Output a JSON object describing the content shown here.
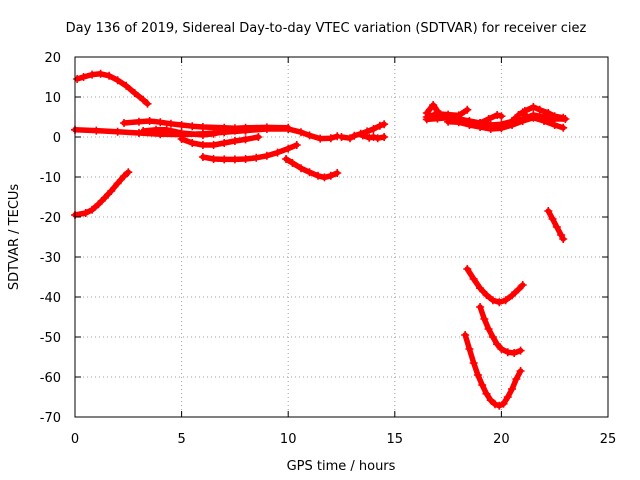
{
  "chart_data": {
    "type": "scatter",
    "title": "Day 136 of 2019, Sidereal Day-to-day VTEC variation (SDTVAR) for receiver ciez",
    "xlabel": "GPS time / hours",
    "ylabel": "SDTVAR / TECUs",
    "xlim": [
      0,
      25
    ],
    "ylim": [
      -70,
      20
    ],
    "xticks": [
      0,
      5,
      10,
      15,
      20,
      25
    ],
    "yticks": [
      20,
      10,
      0,
      -10,
      -20,
      -30,
      -40,
      -50,
      -60,
      -70
    ],
    "grid": true,
    "legend": "none",
    "color": "#ff0000",
    "marker": "plus",
    "series": [
      {
        "values": [
          [
            0.1,
            14.5
          ],
          [
            0.4,
            15.0
          ],
          [
            0.8,
            15.6
          ],
          [
            1.2,
            15.8
          ],
          [
            1.6,
            15.3
          ],
          [
            2.0,
            14.2
          ],
          [
            2.4,
            12.8
          ],
          [
            2.8,
            11.0
          ],
          [
            3.2,
            9.3
          ],
          [
            3.4,
            8.3
          ]
        ]
      },
      {
        "values": [
          [
            0.0,
            1.8
          ],
          [
            1.0,
            1.6
          ],
          [
            2.0,
            1.3
          ],
          [
            3.0,
            1.0
          ],
          [
            4.0,
            0.7
          ],
          [
            5.0,
            0.6
          ],
          [
            6.0,
            0.8
          ],
          [
            7.0,
            1.2
          ],
          [
            8.0,
            1.6
          ],
          [
            9.0,
            2.0
          ],
          [
            10.0,
            2.0
          ],
          [
            10.6,
            1.2
          ],
          [
            11.0,
            0.4
          ],
          [
            11.5,
            -0.4
          ],
          [
            12.0,
            -0.3
          ],
          [
            12.3,
            0.2
          ]
        ]
      },
      {
        "values": [
          [
            2.3,
            3.5
          ],
          [
            3.0,
            3.8
          ],
          [
            3.5,
            4.0
          ],
          [
            4.0,
            3.7
          ],
          [
            4.5,
            3.3
          ],
          [
            5.0,
            3.0
          ],
          [
            5.5,
            2.7
          ],
          [
            6.0,
            2.5
          ],
          [
            7.0,
            2.3
          ],
          [
            7.5,
            2.2
          ],
          [
            8.0,
            2.3
          ],
          [
            9.0,
            2.4
          ],
          [
            10.0,
            2.3
          ]
        ]
      },
      {
        "values": [
          [
            3.2,
            1.5
          ],
          [
            3.8,
            1.8
          ],
          [
            4.3,
            1.8
          ],
          [
            5.0,
            1.0
          ],
          [
            6.0,
            0.5
          ],
          [
            6.5,
            0.8
          ],
          [
            7.0,
            1.4
          ],
          [
            7.5,
            1.6
          ],
          [
            8.0,
            1.6
          ]
        ]
      },
      {
        "values": [
          [
            5.0,
            -0.5
          ],
          [
            5.5,
            -1.5
          ],
          [
            6.0,
            -2.0
          ],
          [
            6.5,
            -2.0
          ],
          [
            7.0,
            -1.5
          ],
          [
            7.5,
            -1.0
          ],
          [
            8.0,
            -0.6
          ],
          [
            8.6,
            0.0
          ]
        ]
      },
      {
        "values": [
          [
            6.0,
            -5.0
          ],
          [
            6.5,
            -5.5
          ],
          [
            7.0,
            -5.6
          ],
          [
            7.5,
            -5.6
          ],
          [
            8.0,
            -5.5
          ],
          [
            8.5,
            -5.2
          ],
          [
            9.0,
            -4.7
          ],
          [
            9.5,
            -3.9
          ],
          [
            10.0,
            -2.9
          ],
          [
            10.4,
            -2.0
          ]
        ]
      },
      {
        "values": [
          [
            9.9,
            -5.5
          ],
          [
            10.2,
            -6.5
          ],
          [
            10.6,
            -7.8
          ],
          [
            11.0,
            -8.8
          ],
          [
            11.4,
            -9.7
          ],
          [
            11.7,
            -10.1
          ],
          [
            12.0,
            -9.7
          ],
          [
            12.3,
            -9.0
          ]
        ]
      },
      {
        "values": [
          [
            12.5,
            0.0
          ],
          [
            12.9,
            -0.3
          ],
          [
            13.1,
            0.3
          ],
          [
            13.4,
            0.8
          ],
          [
            13.7,
            1.4
          ],
          [
            14.0,
            2.0
          ],
          [
            14.3,
            2.8
          ],
          [
            14.5,
            3.2
          ]
        ]
      },
      {
        "values": [
          [
            13.5,
            0.4
          ],
          [
            13.8,
            -0.2
          ],
          [
            14.0,
            0.0
          ],
          [
            14.2,
            -0.3
          ],
          [
            14.5,
            0.0
          ]
        ]
      },
      {
        "values": [
          [
            0.0,
            -19.5
          ],
          [
            0.5,
            -19.0
          ],
          [
            0.8,
            -18.2
          ],
          [
            1.1,
            -16.8
          ],
          [
            1.4,
            -15.2
          ],
          [
            1.7,
            -13.5
          ],
          [
            2.0,
            -11.6
          ],
          [
            2.3,
            -9.8
          ],
          [
            2.5,
            -8.8
          ]
        ]
      },
      {
        "values": [
          [
            16.5,
            6.0
          ],
          [
            16.8,
            8.0
          ],
          [
            17.0,
            6.5
          ]
        ]
      },
      {
        "values": [
          [
            16.5,
            5.0
          ],
          [
            17.0,
            5.8
          ],
          [
            17.5,
            5.6
          ],
          [
            18.0,
            5.4
          ],
          [
            18.4,
            6.8
          ]
        ]
      },
      {
        "values": [
          [
            16.5,
            4.4
          ],
          [
            17.0,
            4.6
          ],
          [
            17.5,
            4.8
          ],
          [
            18.0,
            4.5
          ],
          [
            18.5,
            4.0
          ],
          [
            19.0,
            3.5
          ],
          [
            19.5,
            3.0
          ],
          [
            20.0,
            3.2
          ],
          [
            20.5,
            3.9
          ],
          [
            21.0,
            4.5
          ],
          [
            21.5,
            5.5
          ],
          [
            22.0,
            5.0
          ],
          [
            22.5,
            4.5
          ],
          [
            23.0,
            4.5
          ]
        ]
      },
      {
        "values": [
          [
            17.5,
            3.8
          ],
          [
            18.0,
            3.7
          ],
          [
            18.5,
            3.0
          ],
          [
            19.0,
            2.5
          ],
          [
            19.5,
            2.0
          ],
          [
            20.0,
            2.2
          ],
          [
            20.5,
            3.0
          ],
          [
            21.0,
            4.0
          ],
          [
            21.5,
            4.8
          ],
          [
            22.0,
            4.0
          ],
          [
            22.5,
            3.0
          ],
          [
            22.9,
            2.3
          ]
        ]
      },
      {
        "values": [
          [
            19.0,
            3.5
          ],
          [
            19.4,
            4.5
          ],
          [
            19.8,
            5.5
          ],
          [
            20.0,
            5.2
          ]
        ]
      },
      {
        "values": [
          [
            20.5,
            4.0
          ],
          [
            20.8,
            5.5
          ],
          [
            21.0,
            6.2
          ],
          [
            21.2,
            5.0
          ]
        ]
      },
      {
        "values": [
          [
            21.1,
            6.5
          ],
          [
            21.5,
            7.5
          ],
          [
            21.8,
            6.8
          ],
          [
            22.2,
            6.0
          ],
          [
            22.5,
            5.2
          ],
          [
            22.9,
            4.8
          ]
        ]
      },
      {
        "values": [
          [
            22.2,
            -18.5
          ],
          [
            22.4,
            -20.5
          ],
          [
            22.6,
            -22.5
          ],
          [
            22.8,
            -24.5
          ],
          [
            22.9,
            -25.5
          ]
        ]
      },
      {
        "values": [
          [
            18.4,
            -33.0
          ],
          [
            18.7,
            -35.5
          ],
          [
            19.0,
            -37.8
          ],
          [
            19.3,
            -39.5
          ],
          [
            19.6,
            -40.8
          ],
          [
            19.9,
            -41.3
          ],
          [
            20.2,
            -40.8
          ],
          [
            20.5,
            -39.6
          ],
          [
            20.8,
            -38.1
          ],
          [
            21.0,
            -37.0
          ]
        ]
      },
      {
        "values": [
          [
            19.0,
            -42.5
          ],
          [
            19.2,
            -45.5
          ],
          [
            19.4,
            -48.0
          ],
          [
            19.6,
            -50.0
          ],
          [
            19.8,
            -51.8
          ],
          [
            20.0,
            -53.0
          ],
          [
            20.3,
            -53.8
          ],
          [
            20.6,
            -54.0
          ],
          [
            20.9,
            -53.4
          ]
        ]
      },
      {
        "values": [
          [
            18.3,
            -49.5
          ],
          [
            18.5,
            -53.0
          ],
          [
            18.7,
            -56.5
          ],
          [
            18.9,
            -59.5
          ],
          [
            19.1,
            -62.0
          ],
          [
            19.3,
            -64.2
          ],
          [
            19.5,
            -65.8
          ],
          [
            19.7,
            -66.8
          ],
          [
            19.9,
            -67.2
          ],
          [
            20.1,
            -66.7
          ],
          [
            20.3,
            -65.0
          ],
          [
            20.5,
            -63.0
          ],
          [
            20.7,
            -60.5
          ],
          [
            20.9,
            -58.5
          ]
        ]
      }
    ]
  }
}
